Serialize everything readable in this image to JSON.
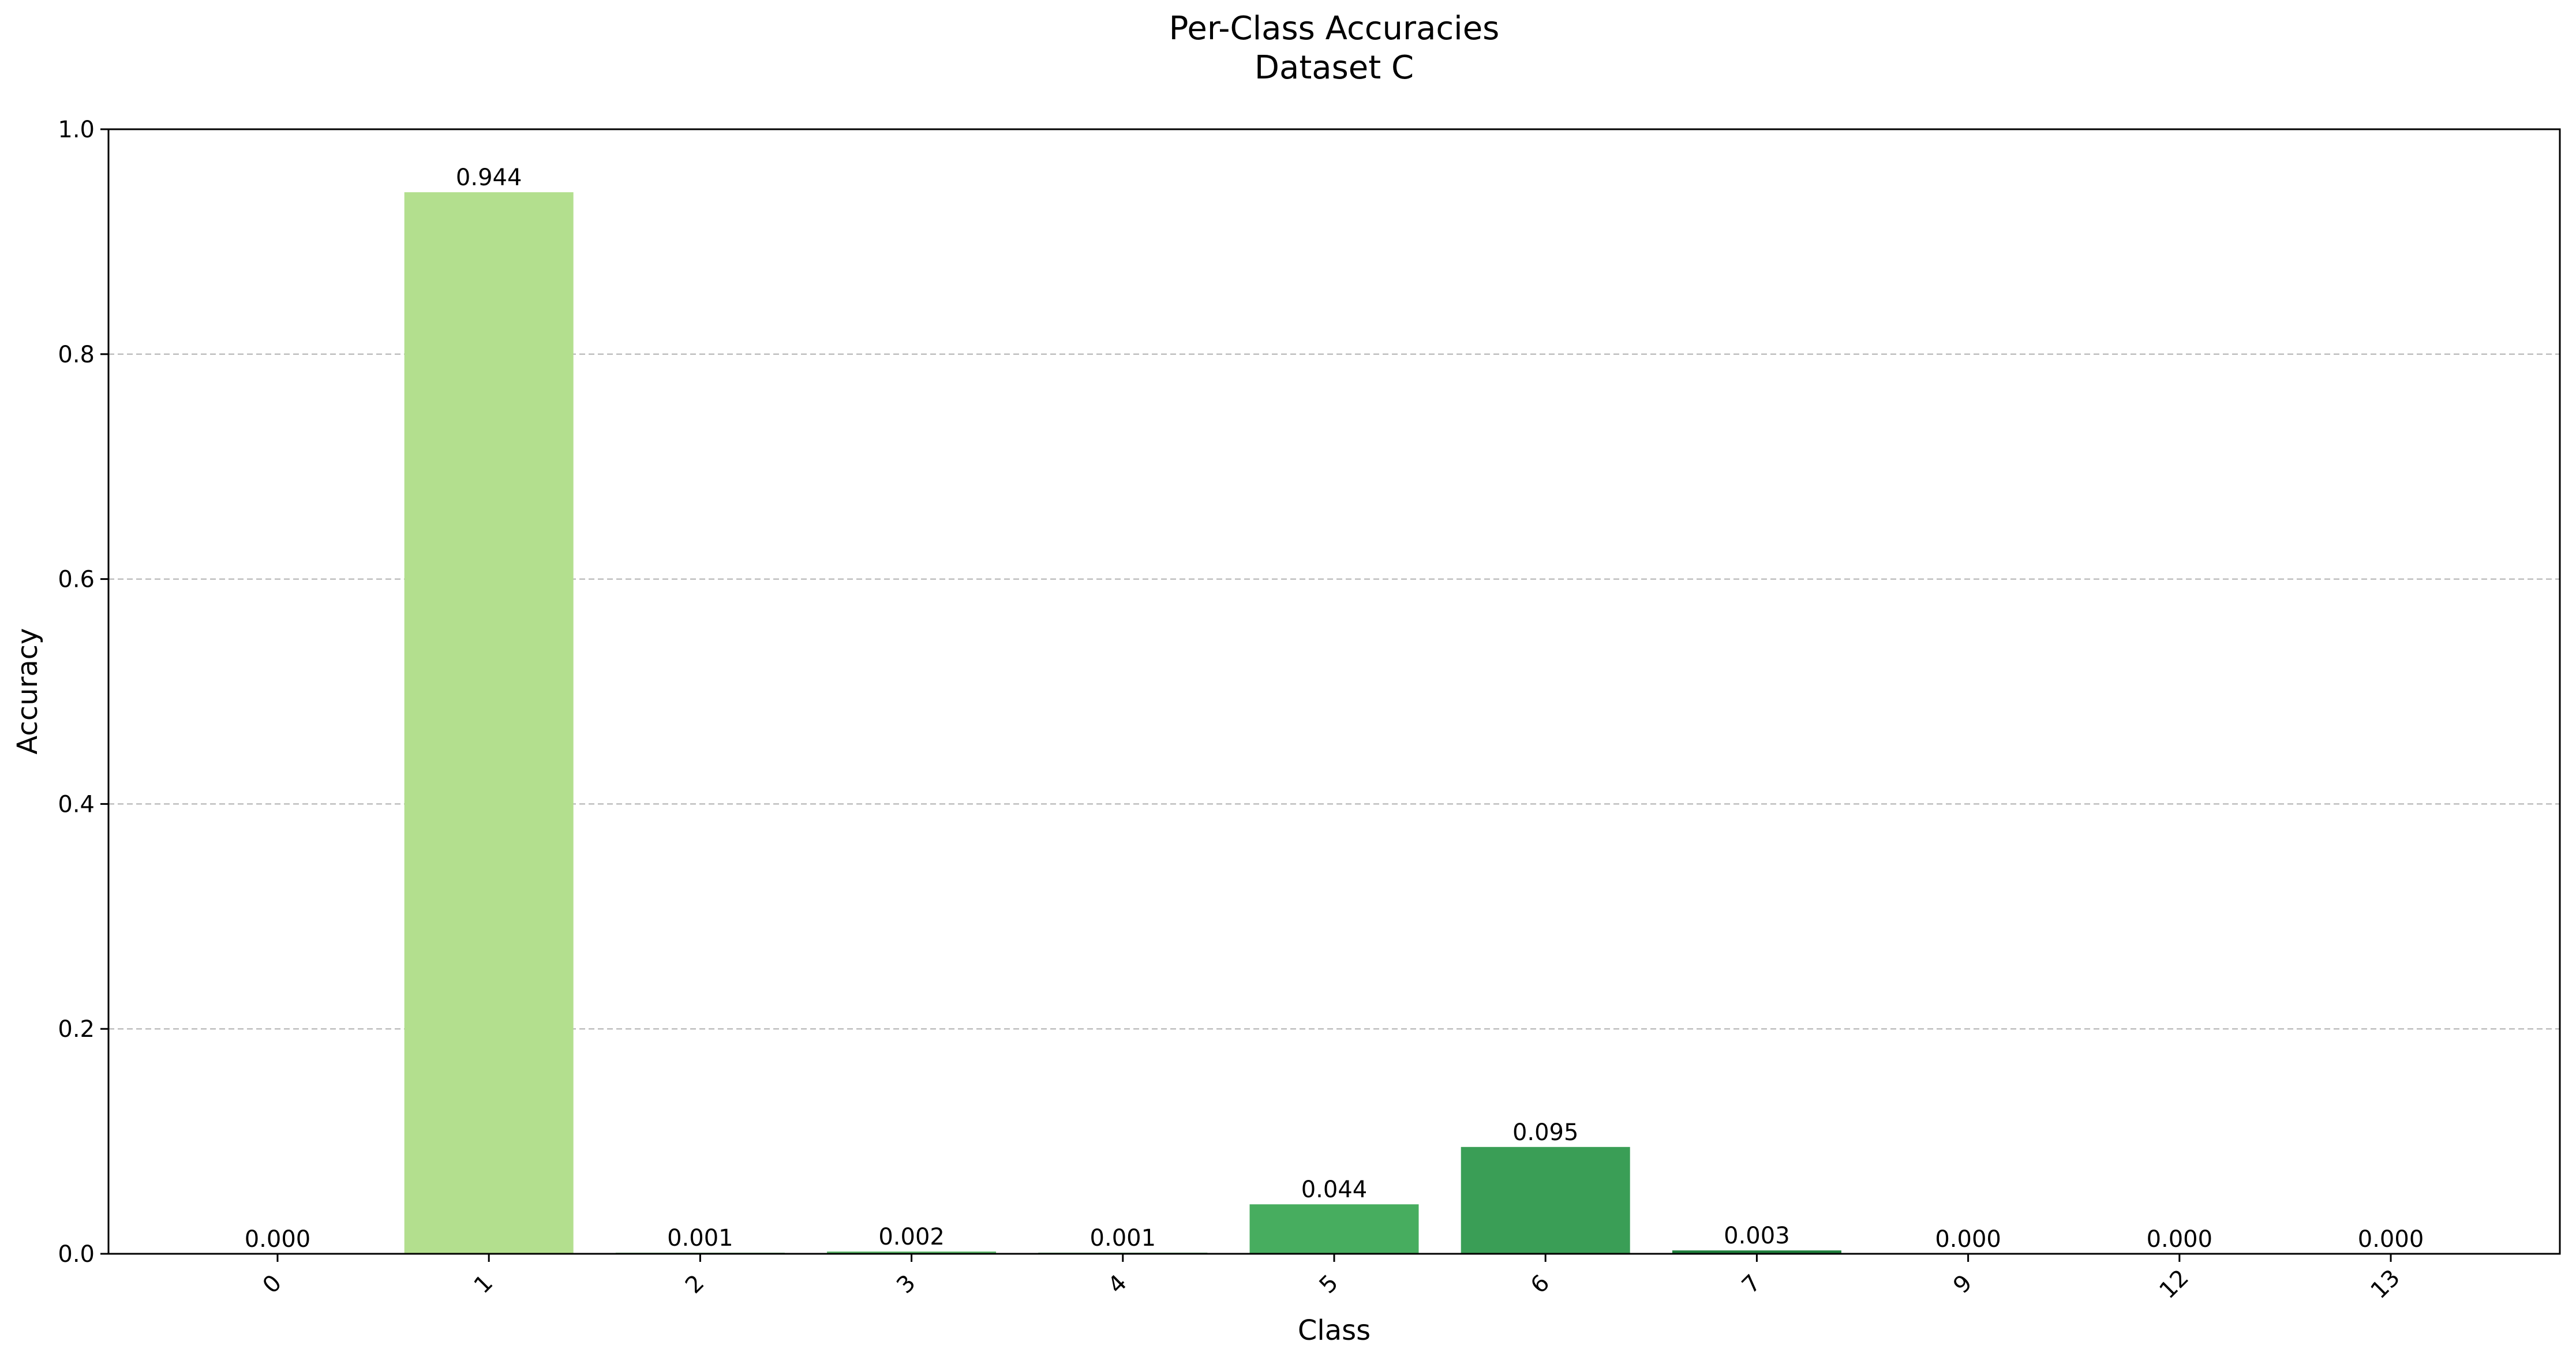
{
  "chart_data": {
    "type": "bar",
    "title": "Per-Class Accuracies",
    "subtitle": "Dataset C",
    "xlabel": "Class",
    "ylabel": "Accuracy",
    "ylim": [
      0,
      1.0
    ],
    "yticks": [
      "0.0",
      "0.2",
      "0.4",
      "0.6",
      "0.8",
      "1.0"
    ],
    "grid": "y-dashed",
    "categories": [
      "0",
      "1",
      "2",
      "3",
      "4",
      "5",
      "6",
      "7",
      "9",
      "12",
      "13"
    ],
    "values": [
      0.0,
      0.944,
      0.001,
      0.002,
      0.001,
      0.044,
      0.095,
      0.003,
      0.0,
      0.0,
      0.0
    ],
    "data_labels": [
      "0.000",
      "0.944",
      "0.001",
      "0.002",
      "0.001",
      "0.044",
      "0.095",
      "0.003",
      "0.000",
      "0.000",
      "0.000"
    ],
    "colors": [
      "#f7fcb9",
      "#b3df8e",
      "#78c679",
      "#5bb86a",
      "#4aaf61",
      "#47ad5f",
      "#3a9e56",
      "#1f7f3b",
      "#006837",
      "#005a2f",
      "#004529"
    ]
  }
}
